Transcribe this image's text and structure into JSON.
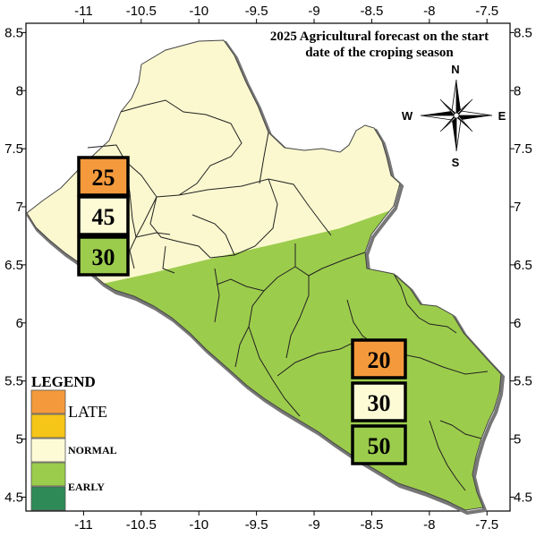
{
  "title": {
    "line1": "2025 Agricultural forecast on the start",
    "line2": "date of the croping season"
  },
  "axes": {
    "x_ticks": [
      "-11",
      "-10.5",
      "-10",
      "-9.5",
      "-9",
      "-8.5",
      "-8",
      "-7.5"
    ],
    "y_ticks": [
      "8.5",
      "8",
      "7.5",
      "7",
      "6.5",
      "6",
      "5.5",
      "5",
      "4.5"
    ],
    "x_range": [
      -11.5,
      -7.3
    ],
    "y_range": [
      4.38,
      8.58
    ]
  },
  "compass": {
    "n": "N",
    "s": "S",
    "e": "E",
    "w": "W"
  },
  "zones": [
    {
      "name": "north",
      "late": "25",
      "normal": "45",
      "early": "30",
      "dominant": "normal"
    },
    {
      "name": "south",
      "late": "20",
      "normal": "30",
      "early": "50",
      "dominant": "early"
    }
  ],
  "legend": {
    "title": "LEGEND",
    "items": [
      {
        "label": "LATE",
        "color": "#f59a3c"
      },
      {
        "label": "",
        "color": "#f5c518"
      },
      {
        "label": "NORMAL",
        "color": "#fdfbd6"
      },
      {
        "label": "",
        "color": "#9ccc4c"
      },
      {
        "label": "EARLY",
        "color": "#2e8b57"
      }
    ]
  },
  "colors": {
    "late": "#f59a3c",
    "normal": "#fdfbd6",
    "early": "#9ccc4c",
    "map_north": "#fbf8cf",
    "map_south": "#9ccc4c"
  }
}
